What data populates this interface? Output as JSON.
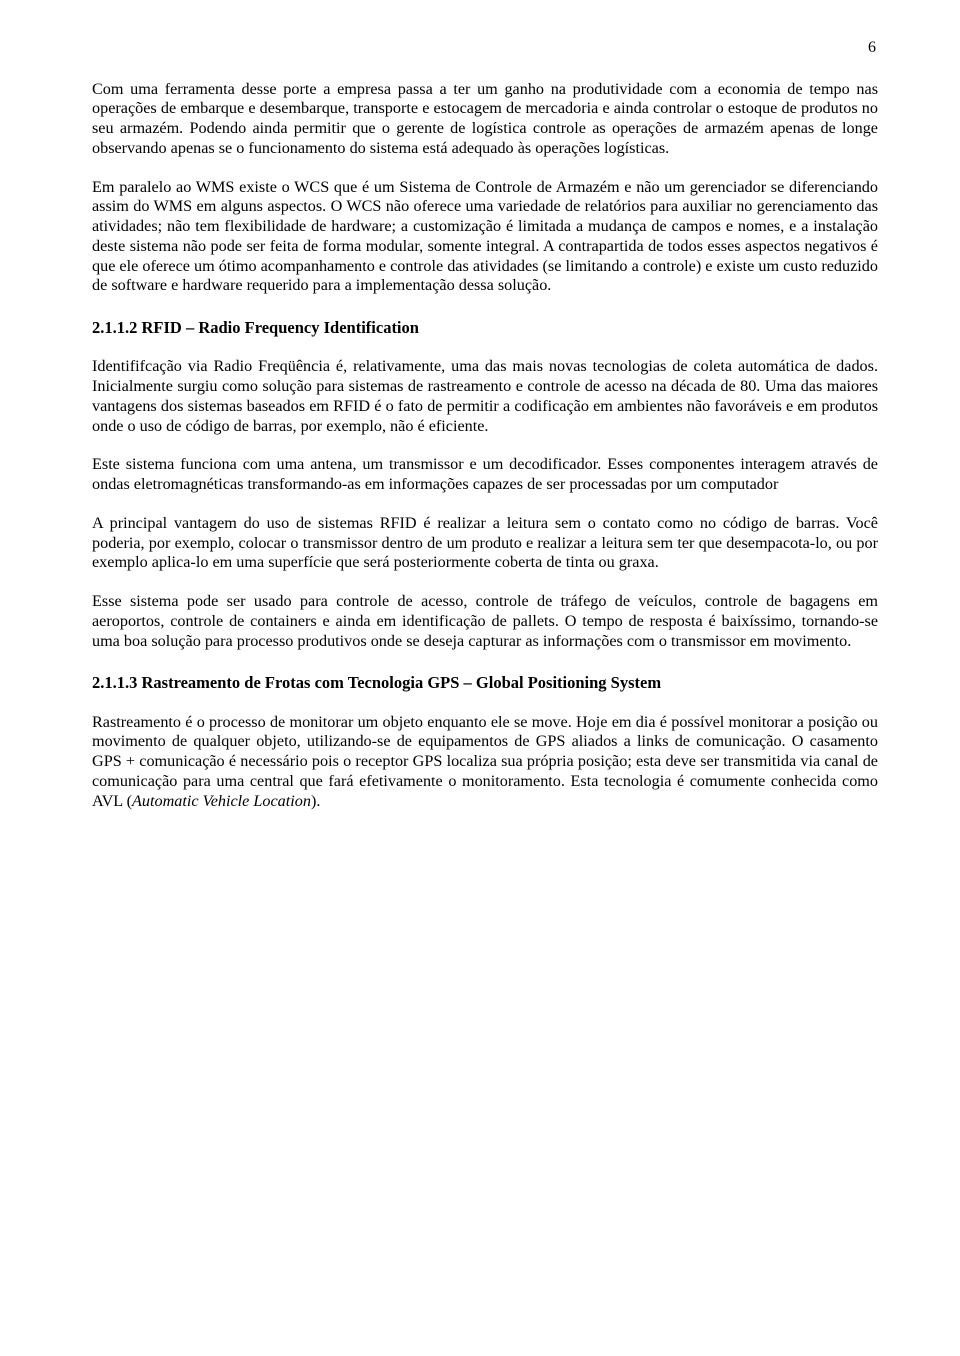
{
  "page_number": "6",
  "para1": "Com uma ferramenta desse porte a empresa passa a ter um ganho na produtividade com a economia de tempo nas operações de embarque e desembarque, transporte e estocagem de mercadoria e ainda controlar o estoque de produtos no seu armazém. Podendo ainda permitir que o gerente de logística controle as operações de armazém apenas de longe observando apenas se o funcionamento do sistema está adequado às operações logísticas.",
  "para2": "Em paralelo ao WMS existe o WCS que é um Sistema de Controle de Armazém e não um gerenciador se diferenciando assim do WMS em alguns aspectos.  O WCS não oferece uma variedade de relatórios para auxiliar no gerenciamento das atividades; não tem flexibilidade de hardware; a customização é limitada a mudança de campos e nomes, e  a instalação deste sistema não pode ser feita de forma modular, somente integral.  A contrapartida de todos esses aspectos negativos é que ele oferece um ótimo acompanhamento e controle das atividades (se limitando a controle) e existe um custo reduzido de software e hardware requerido para a implementação dessa solução.",
  "heading1": "2.1.1.2 RFID – Radio Frequency Identification",
  "para3": "Identififcação via Radio Freqüência é, relativamente, uma das mais novas tecnologias de coleta automática de dados. Inicialmente surgiu como solução para sistemas de rastreamento e controle de acesso na década de 80. Uma das maiores vantagens dos sistemas baseados em RFID é o fato de permitir a codificação em ambientes não favoráveis e em produtos onde o uso de código de barras, por exemplo, não é eficiente.",
  "para4": "Este sistema funciona com uma antena, um transmissor e um decodificador. Esses componentes interagem através de ondas eletromagnéticas transformando-as em informações capazes de ser processadas por um computador",
  "para5": "A principal vantagem do uso de sistemas RFID é realizar a leitura sem o contato como no código de barras. Você poderia, por exemplo, colocar o transmissor dentro de um produto e realizar a leitura sem ter que desempacota-lo, ou por exemplo aplica-lo em uma superfície que será posteriormente coberta de tinta ou graxa.",
  "para6": "Esse sistema pode ser usado para controle de acesso, controle de tráfego de veículos, controle de bagagens em aeroportos, controle de containers e ainda em identificação de pallets.  O tempo de resposta é baixíssimo, tornando-se uma boa solução para processo produtivos onde se deseja capturar as informações com o transmissor em movimento.",
  "heading2": "2.1.1.3   Rastreamento de Frotas com Tecnologia GPS – Global Positioning System",
  "para7_pre": "Rastreamento é o processo de monitorar um objeto enquanto ele se move. Hoje em dia é possível monitorar a posição ou movimento de qualquer objeto, utilizando-se de equipamentos de GPS aliados a links de comunicação. O casamento GPS + comunicação é necessário pois o receptor GPS localiza sua própria posição; esta deve ser transmitida via canal de comunicação para uma central que fará efetivamente o monitoramento. Esta tecnologia é comumente conhecida como AVL (",
  "para7_italic": "Automatic Vehicle Location",
  "para7_post": ")."
}
